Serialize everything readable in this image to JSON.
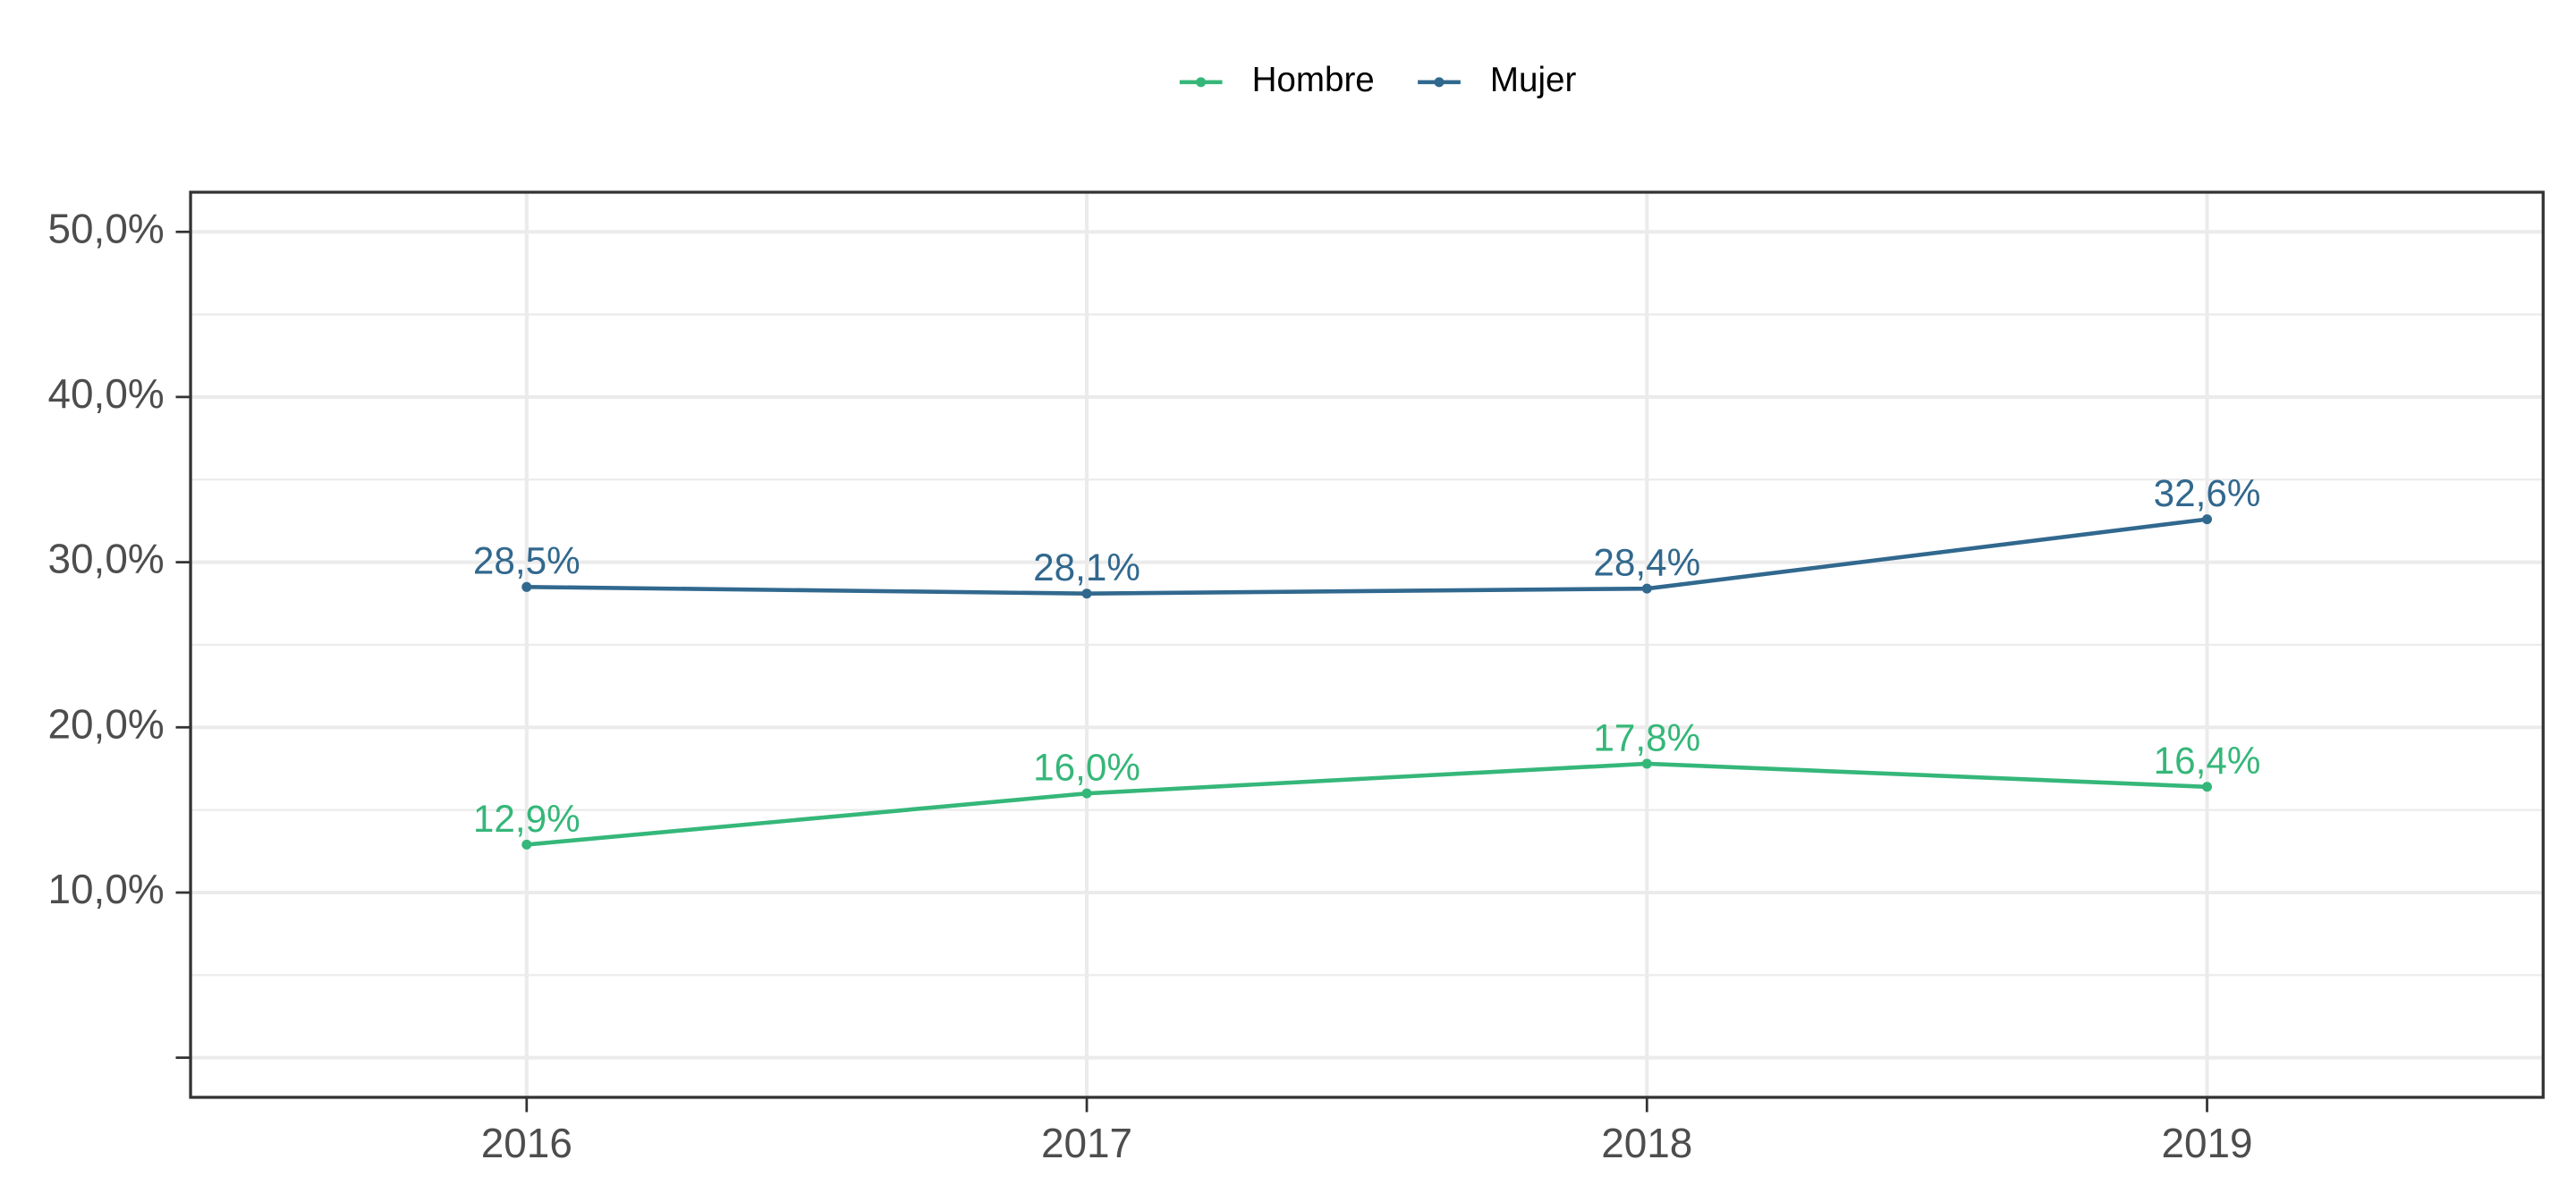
{
  "chart_data": {
    "type": "line",
    "categories": [
      "2016",
      "2017",
      "2018",
      "2019"
    ],
    "series": [
      {
        "name": "Hombre",
        "color": "#35b779",
        "values": [
          12.9,
          16.0,
          17.8,
          16.4
        ],
        "value_labels": [
          "12,9%",
          "16,0%",
          "17,8%",
          "16,4%"
        ]
      },
      {
        "name": "Mujer",
        "color": "#31688e",
        "values": [
          28.5,
          28.1,
          28.4,
          32.6
        ],
        "value_labels": [
          "28,5%",
          "28,1%",
          "28,4%",
          "32,6%"
        ]
      }
    ],
    "ylim": [
      -2.4,
      52.4
    ],
    "yticks": [
      {
        "value": 0,
        "label": null
      },
      {
        "value": 10,
        "label": "10,0%"
      },
      {
        "value": 20,
        "label": "20,0%"
      },
      {
        "value": 30,
        "label": "30,0%"
      },
      {
        "value": 40,
        "label": "40,0%"
      },
      {
        "value": 50,
        "label": "50,0%"
      }
    ],
    "minor_yticks": [
      5,
      15,
      25,
      35,
      45
    ],
    "grid": true,
    "legend": "top"
  }
}
